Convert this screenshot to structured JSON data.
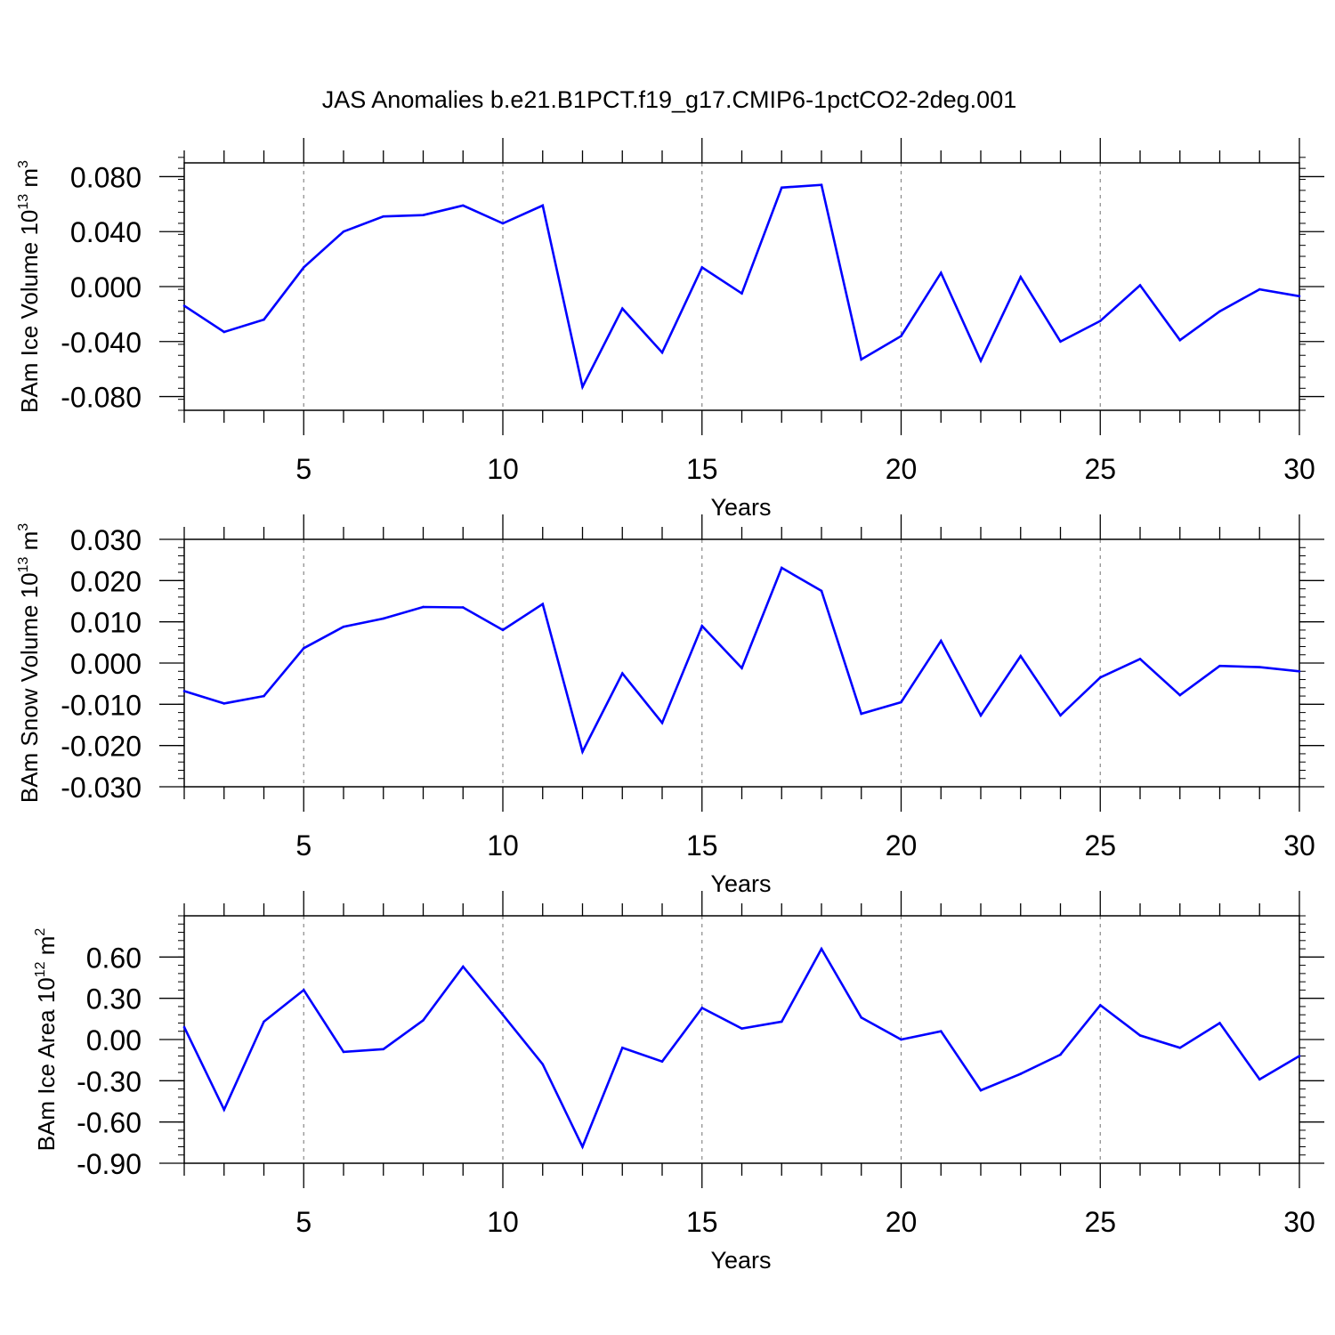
{
  "title": "JAS Anomalies b.e21.B1PCT.f19_g17.CMIP6-1pctCO2-2deg.001",
  "colors": {
    "line": "#0000ff",
    "axis": "#000000",
    "grid": "#888888"
  },
  "chart_data": [
    {
      "type": "line",
      "ylabel_main": "BAm Ice Volume 10",
      "ylabel_exp": "13",
      "ylabel_unit": " m",
      "ylabel_unit_exp": "3",
      "xlabel": "Years",
      "xlim": [
        2,
        30
      ],
      "ylim": [
        -0.09,
        0.09
      ],
      "xticks": [
        5,
        10,
        15,
        20,
        25,
        30
      ],
      "yticks": [
        -0.08,
        -0.04,
        0.0,
        0.04,
        0.08
      ],
      "ytick_labels": [
        "-0.080",
        "-0.040",
        "0.000",
        "0.040",
        "0.080"
      ],
      "y_minor_step": 0.008,
      "grid_x": [
        5,
        10,
        15,
        20,
        25
      ],
      "x": [
        2,
        3,
        4,
        5,
        6,
        7,
        8,
        9,
        10,
        11,
        12,
        13,
        14,
        15,
        16,
        17,
        18,
        19,
        20,
        21,
        22,
        23,
        24,
        25,
        26,
        27,
        28,
        29,
        30
      ],
      "values": [
        -0.014,
        -0.033,
        -0.024,
        0.014,
        0.04,
        0.051,
        0.052,
        0.059,
        0.046,
        0.059,
        -0.073,
        -0.016,
        -0.048,
        0.014,
        -0.005,
        0.072,
        0.074,
        -0.053,
        -0.036,
        0.01,
        -0.054,
        0.007,
        -0.04,
        -0.025,
        0.001,
        -0.039,
        -0.018,
        -0.002,
        -0.007
      ]
    },
    {
      "type": "line",
      "ylabel_main": "BAm Snow Volume 10",
      "ylabel_exp": "13",
      "ylabel_unit": " m",
      "ylabel_unit_exp": "3",
      "xlabel": "Years",
      "xlim": [
        2,
        30
      ],
      "ylim": [
        -0.03,
        0.03
      ],
      "xticks": [
        5,
        10,
        15,
        20,
        25,
        30
      ],
      "yticks": [
        -0.03,
        -0.02,
        -0.01,
        0.0,
        0.01,
        0.02,
        0.03
      ],
      "ytick_labels": [
        "-0.030",
        "-0.020",
        "-0.010",
        "0.000",
        "0.010",
        "0.020",
        "0.030"
      ],
      "y_minor_step": 0.002,
      "grid_x": [
        5,
        10,
        15,
        20,
        25
      ],
      "x": [
        2,
        3,
        4,
        5,
        6,
        7,
        8,
        9,
        10,
        11,
        12,
        13,
        14,
        15,
        16,
        17,
        18,
        19,
        20,
        21,
        22,
        23,
        24,
        25,
        26,
        27,
        28,
        29,
        30
      ],
      "values": [
        -0.0068,
        -0.0098,
        -0.008,
        0.0036,
        0.0088,
        0.0108,
        0.0136,
        0.0135,
        0.008,
        0.0143,
        -0.0215,
        -0.0025,
        -0.0145,
        0.009,
        -0.0012,
        0.0231,
        0.0175,
        -0.0123,
        -0.0095,
        0.0054,
        -0.0127,
        0.0017,
        -0.0127,
        -0.0035,
        0.001,
        -0.0078,
        -0.0007,
        -0.001,
        -0.002
      ]
    },
    {
      "type": "line",
      "ylabel_main": "BAm Ice Area 10",
      "ylabel_exp": "12",
      "ylabel_unit": " m",
      "ylabel_unit_exp": "2",
      "xlabel": "Years",
      "xlim": [
        2,
        30
      ],
      "ylim": [
        -0.9,
        0.9
      ],
      "xticks": [
        5,
        10,
        15,
        20,
        25,
        30
      ],
      "yticks": [
        -0.9,
        -0.6,
        -0.3,
        0.0,
        0.3,
        0.6
      ],
      "ytick_labels": [
        "-0.90",
        "-0.60",
        "-0.30",
        "0.00",
        "0.30",
        "0.60"
      ],
      "y_minor_step": 0.06,
      "grid_x": [
        5,
        10,
        15,
        20,
        25
      ],
      "x": [
        2,
        3,
        4,
        5,
        6,
        7,
        8,
        9,
        10,
        11,
        12,
        13,
        14,
        15,
        16,
        17,
        18,
        19,
        20,
        21,
        22,
        23,
        24,
        25,
        26,
        27,
        28,
        29,
        30
      ],
      "values": [
        0.09,
        -0.51,
        0.13,
        0.36,
        -0.09,
        -0.07,
        0.14,
        0.53,
        0.18,
        -0.18,
        -0.78,
        -0.06,
        -0.16,
        0.23,
        0.08,
        0.13,
        0.66,
        0.16,
        0.0,
        0.06,
        -0.37,
        -0.25,
        -0.11,
        0.25,
        0.03,
        -0.06,
        0.12,
        -0.29,
        -0.12
      ]
    }
  ]
}
